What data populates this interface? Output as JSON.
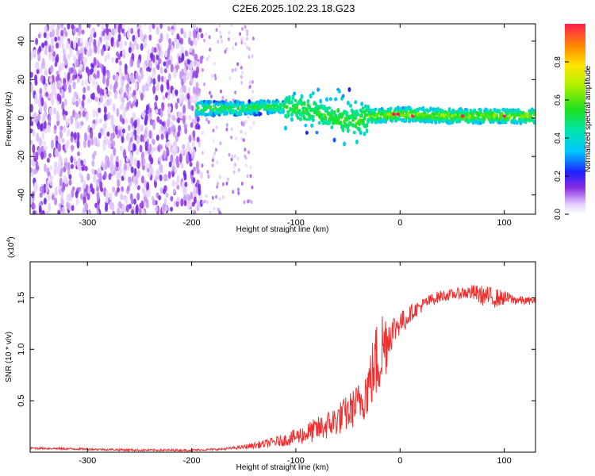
{
  "title": "C2E6.2025.102.23.18.G23",
  "chart_data": [
    {
      "type": "heatmap",
      "xlabel": "Height of straight line (km)",
      "ylabel": "Frequency (Hz)",
      "xlim": [
        -355,
        130
      ],
      "ylim": [
        -50,
        49
      ],
      "xticks": [
        -300,
        -200,
        -100,
        0,
        100
      ],
      "yticks": [
        -40,
        -20,
        0,
        20,
        40
      ],
      "colorbar": {
        "label": "Normalized spectral amplitude",
        "range": [
          0,
          1
        ],
        "ticks": [
          "0.0",
          "0.2",
          "0.4",
          "0.6",
          "0.8"
        ],
        "tick_values": [
          0.0,
          0.2,
          0.4,
          0.6,
          0.8
        ]
      },
      "structure": {
        "noise_region_x": [
          -355,
          -190
        ],
        "sparse_noise_x": [
          -190,
          -140
        ],
        "signal_band_center": [
          [
            -195,
            5
          ],
          [
            -150,
            5
          ],
          [
            -120,
            6
          ],
          [
            -100,
            5
          ],
          [
            -80,
            3
          ],
          [
            -60,
            -1
          ],
          [
            -45,
            -2
          ],
          [
            -30,
            1
          ],
          [
            0,
            2
          ],
          [
            50,
            1
          ],
          [
            130,
            1
          ]
        ],
        "peak_amplitude": 1.0
      }
    },
    {
      "type": "line",
      "xlabel": "Height of straight line (km)",
      "ylabel": "SNR (10 * v/v)",
      "y_multiplier": "(x10",
      "y_multiplier_exp": "4",
      "y_multiplier_close": ")",
      "xlim": [
        -355,
        130
      ],
      "ylim": [
        0,
        1.85
      ],
      "xticks": [
        -300,
        -200,
        -100,
        0,
        100
      ],
      "yticks": [
        0.5,
        1.0,
        1.5
      ],
      "ytick_labels": [
        "0.5",
        "1.0",
        "1.5"
      ],
      "series": [
        {
          "color": "#f03030",
          "x": [
            -355,
            -300,
            -250,
            -200,
            -170,
            -150,
            -130,
            -110,
            -100,
            -90,
            -80,
            -70,
            -60,
            -50,
            -40,
            -35,
            -30,
            -25,
            -20,
            -15,
            -10,
            -5,
            0,
            5,
            10,
            20,
            30,
            40,
            50,
            60,
            70,
            80,
            90,
            100,
            110,
            120,
            130
          ],
          "y": [
            0.04,
            0.03,
            0.02,
            0.02,
            0.03,
            0.05,
            0.08,
            0.12,
            0.15,
            0.18,
            0.22,
            0.26,
            0.32,
            0.38,
            0.48,
            0.55,
            0.65,
            0.82,
            0.95,
            1.05,
            1.15,
            1.2,
            1.27,
            1.28,
            1.35,
            1.42,
            1.48,
            1.52,
            1.53,
            1.55,
            1.55,
            1.52,
            1.5,
            1.5,
            1.48,
            1.47,
            1.47
          ],
          "noise_amplitude": [
            0.01,
            0.01,
            0.01,
            0.01,
            0.01,
            0.02,
            0.04,
            0.06,
            0.08,
            0.1,
            0.12,
            0.14,
            0.16,
            0.18,
            0.2,
            0.25,
            0.3,
            0.35,
            0.45,
            0.4,
            0.2,
            0.15,
            0.12,
            0.1,
            0.08,
            0.07,
            0.06,
            0.06,
            0.05,
            0.06,
            0.08,
            0.1,
            0.1,
            0.07,
            0.05,
            0.04,
            0.03
          ]
        }
      ]
    }
  ]
}
